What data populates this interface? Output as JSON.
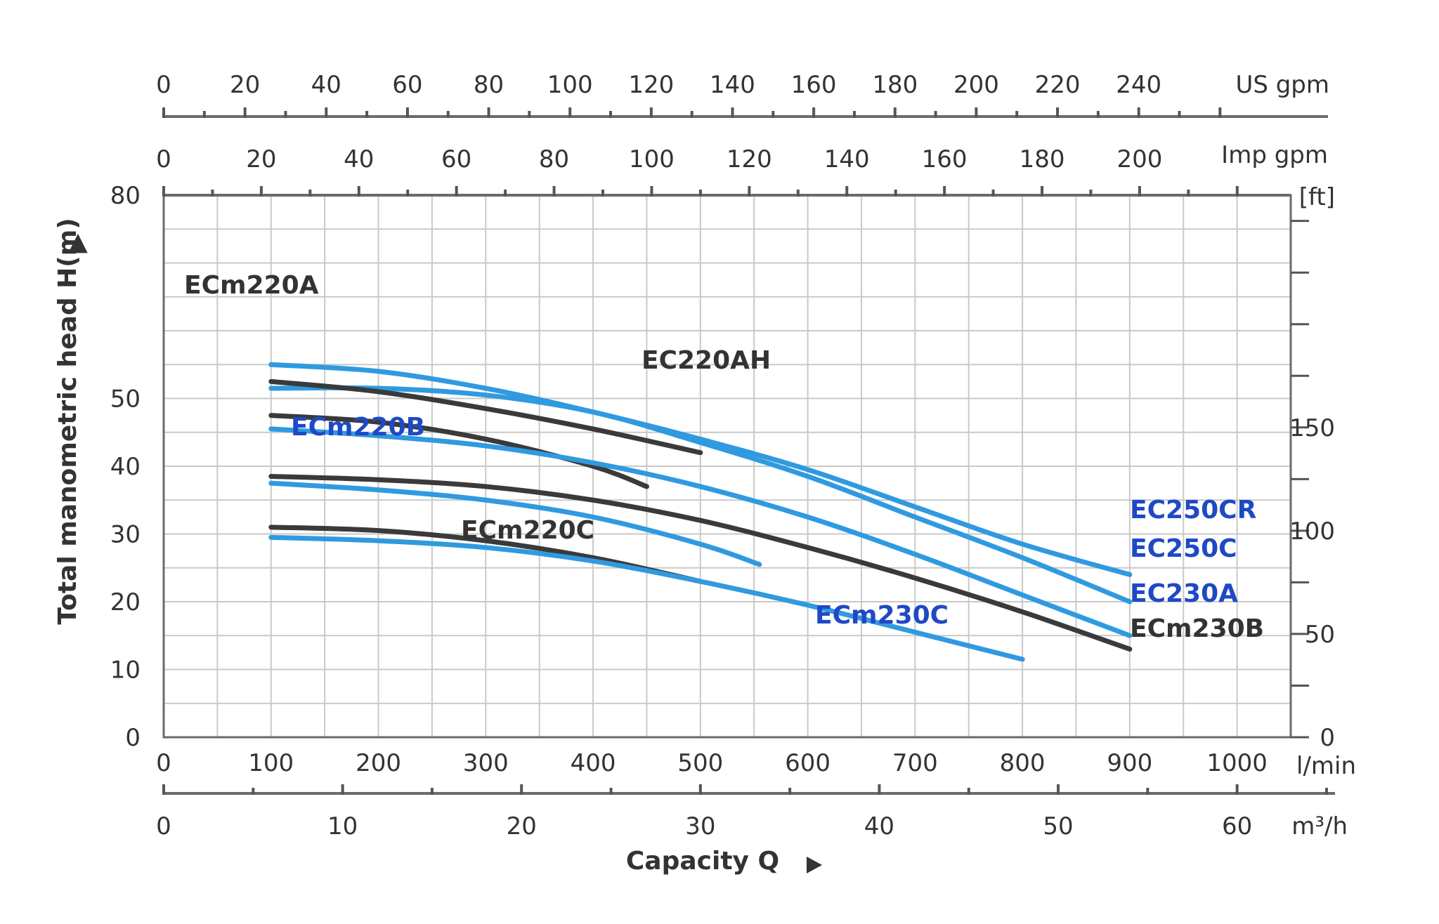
{
  "chart_data": {
    "type": "line",
    "xlabel": "Capacity Q",
    "ylabel": "Total manometric head H(m)",
    "arrow_glyph": "▲",
    "xlim": [
      0,
      1050
    ],
    "ylim": [
      0,
      80
    ],
    "x_unit_primary": "l/min",
    "grid": true,
    "x_ticks": [
      "0",
      "100",
      "200",
      "300",
      "400",
      "500",
      "600",
      "700",
      "800",
      "900",
      "1000"
    ],
    "y_ticks": [
      "0",
      "10",
      "20",
      "30",
      "40",
      "50",
      "60",
      "70",
      "80"
    ],
    "y_ticks_labeled": [
      "0",
      "10",
      "20",
      "30",
      "40",
      "50",
      "80"
    ],
    "secondary_axes": {
      "us_gpm": {
        "unit": "US gpm",
        "labels": [
          "0",
          "20",
          "40",
          "60",
          "80",
          "100",
          "120",
          "140",
          "160",
          "180",
          "200",
          "220",
          "240"
        ],
        "lpm_per_unit": 3.785
      },
      "imp_gpm": {
        "unit": "Imp gpm",
        "labels": [
          "0",
          "20",
          "40",
          "60",
          "80",
          "100",
          "120",
          "140",
          "160",
          "180",
          "200"
        ],
        "lpm_per_unit": 4.546
      },
      "m3h": {
        "unit": "m³/h",
        "labels": [
          "0",
          "10",
          "20",
          "30",
          "40",
          "50",
          "60"
        ],
        "lpm_per_unit": 16.667
      },
      "ft": {
        "unit": "[ft]",
        "labels": [
          "0",
          "50",
          "100",
          "150"
        ],
        "m_per_unit": 0.3048
      }
    },
    "colors": {
      "blue": "#2f9ae0",
      "dark": "#3a3a3a",
      "blue_label": "#1f49c4",
      "dark_label": "#333333"
    },
    "series": [
      {
        "name": "EC250CR",
        "color": "blue",
        "label_color": "blue_label",
        "x": [
          100,
          200,
          300,
          400,
          500,
          600,
          700,
          800,
          900
        ],
        "y": [
          55,
          54,
          51.5,
          48,
          44,
          39.5,
          34,
          28.5,
          24
        ]
      },
      {
        "name": "EC250C",
        "color": "blue",
        "label_color": "blue_label",
        "x": [
          100,
          200,
          300,
          400,
          500,
          600,
          700,
          800,
          900
        ],
        "y": [
          51.5,
          51.5,
          50.5,
          48,
          43.5,
          38.5,
          32.5,
          26.5,
          20
        ]
      },
      {
        "name": "ECm220A",
        "color": "dark",
        "label_color": "dark_label",
        "x": [
          100,
          200,
          300,
          400,
          500
        ],
        "y": [
          52.5,
          51,
          48.5,
          45.5,
          42
        ]
      },
      {
        "name": "EC220AH",
        "color": "dark",
        "label_color": "dark_label",
        "x": [
          100,
          200,
          300,
          400,
          450
        ],
        "y": [
          47.5,
          46.5,
          44,
          40,
          37
        ]
      },
      {
        "name": "EC230A",
        "color": "blue",
        "label_color": "blue_label",
        "x": [
          100,
          200,
          300,
          400,
          500,
          600,
          700,
          800,
          900
        ],
        "y": [
          45.5,
          44.5,
          43,
          40.5,
          37,
          32.5,
          27,
          21,
          15
        ]
      },
      {
        "name": "ECm230B",
        "color": "dark",
        "label_color": "dark_label",
        "x": [
          100,
          200,
          300,
          400,
          500,
          600,
          700,
          800,
          900
        ],
        "y": [
          38.5,
          38,
          37,
          35,
          32,
          28,
          23.5,
          18.5,
          13
        ]
      },
      {
        "name": "ECm220B",
        "color": "blue",
        "label_color": "blue_label",
        "x": [
          100,
          200,
          300,
          400,
          500,
          555
        ],
        "y": [
          37.5,
          36.5,
          35,
          32.5,
          28.5,
          25.5
        ]
      },
      {
        "name": "ECm220C",
        "color": "dark",
        "label_color": "dark_label",
        "x": [
          100,
          200,
          300,
          400,
          500
        ],
        "y": [
          31,
          30.5,
          29,
          26.5,
          23
        ]
      },
      {
        "name": "ECm230C",
        "color": "blue",
        "label_color": "blue_label",
        "x": [
          100,
          200,
          300,
          400,
          500,
          600,
          700,
          800
        ],
        "y": [
          29.5,
          29,
          28,
          26,
          23,
          19.5,
          15.5,
          11.5
        ]
      }
    ]
  }
}
